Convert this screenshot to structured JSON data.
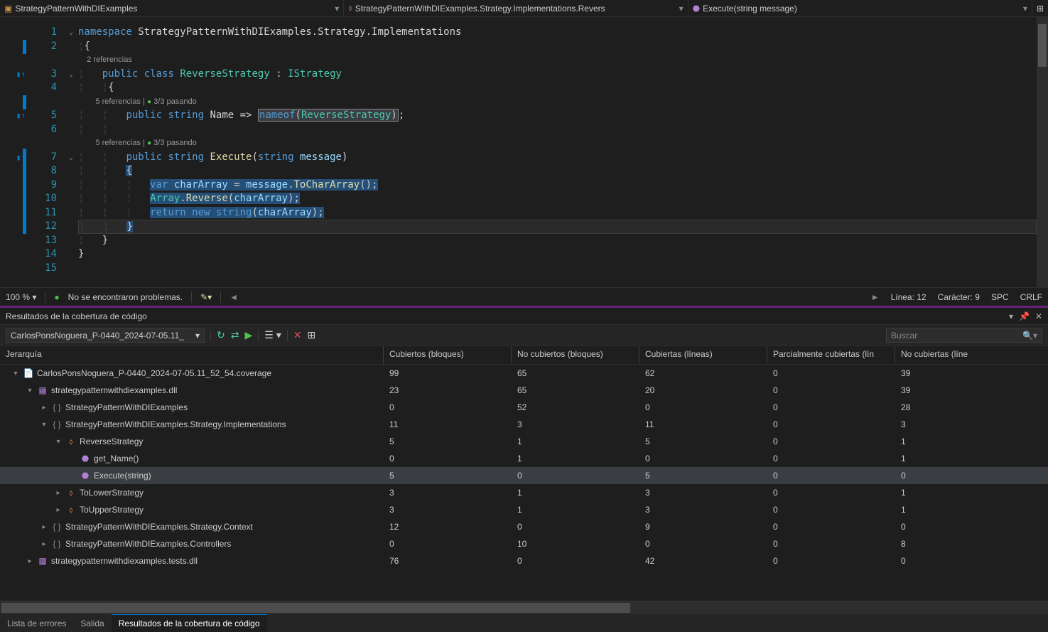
{
  "topbar": {
    "project": "StrategyPatternWithDIExamples",
    "class": "StrategyPatternWithDIExamples.Strategy.Implementations.Revers",
    "method": "Execute(string message)"
  },
  "code": {
    "codelens1": "2 referencias",
    "codelens2": "5 referencias |",
    "codelens2b": "3/3 pasando",
    "codelens3": "5 referencias |",
    "codelens3b": "3/3 pasando"
  },
  "status": {
    "zoom": "100 %",
    "problems": "No se encontraron problemas.",
    "line": "Línea: 12",
    "char": "Carácter: 9",
    "enc": "SPC",
    "eol": "CRLF"
  },
  "panel": {
    "title": "Resultados de la cobertura de código"
  },
  "toolbar": {
    "dropdown": "CarlosPonsNoguera_P-0440_2024-07-05.11_",
    "search_placeholder": "Buscar"
  },
  "columns": {
    "c0": "Jerarquía",
    "c1": "Cubiertos (bloques)",
    "c2": "No cubiertos (bloques)",
    "c3": "Cubiertas (líneas)",
    "c4": "Parcialmente cubiertas (lín",
    "c5": "No cubiertas (líne"
  },
  "rows": [
    {
      "indent": 0,
      "expand": "▾",
      "icon": "file",
      "label": "CarlosPonsNoguera_P-0440_2024-07-05.11_52_54.coverage",
      "v": [
        "99",
        "65",
        "62",
        "0",
        "39"
      ]
    },
    {
      "indent": 1,
      "expand": "▾",
      "icon": "dll",
      "label": "strategypatternwithdiexamples.dll",
      "v": [
        "23",
        "65",
        "20",
        "0",
        "39"
      ]
    },
    {
      "indent": 2,
      "expand": "▸",
      "icon": "ns",
      "label": "StrategyPatternWithDIExamples",
      "v": [
        "0",
        "52",
        "0",
        "0",
        "28"
      ]
    },
    {
      "indent": 2,
      "expand": "▾",
      "icon": "ns",
      "label": "StrategyPatternWithDIExamples.Strategy.Implementations",
      "v": [
        "11",
        "3",
        "11",
        "0",
        "3"
      ]
    },
    {
      "indent": 3,
      "expand": "▾",
      "icon": "class",
      "label": "ReverseStrategy",
      "v": [
        "5",
        "1",
        "5",
        "0",
        "1"
      ]
    },
    {
      "indent": 4,
      "expand": "",
      "icon": "method",
      "label": "get_Name()",
      "v": [
        "0",
        "1",
        "0",
        "0",
        "1"
      ]
    },
    {
      "indent": 4,
      "expand": "",
      "icon": "method",
      "label": "Execute(string)",
      "selected": true,
      "v": [
        "5",
        "0",
        "5",
        "0",
        "0"
      ]
    },
    {
      "indent": 3,
      "expand": "▸",
      "icon": "class",
      "label": "ToLowerStrategy",
      "v": [
        "3",
        "1",
        "3",
        "0",
        "1"
      ]
    },
    {
      "indent": 3,
      "expand": "▸",
      "icon": "class",
      "label": "ToUpperStrategy",
      "v": [
        "3",
        "1",
        "3",
        "0",
        "1"
      ]
    },
    {
      "indent": 2,
      "expand": "▸",
      "icon": "ns",
      "label": "StrategyPatternWithDIExamples.Strategy.Context",
      "v": [
        "12",
        "0",
        "9",
        "0",
        "0"
      ]
    },
    {
      "indent": 2,
      "expand": "▸",
      "icon": "ns",
      "label": "StrategyPatternWithDIExamples.Controllers",
      "v": [
        "0",
        "10",
        "0",
        "0",
        "8"
      ]
    },
    {
      "indent": 1,
      "expand": "▸",
      "icon": "dll",
      "label": "strategypatternwithdiexamples.tests.dll",
      "v": [
        "76",
        "0",
        "42",
        "0",
        "0"
      ]
    }
  ],
  "tabs": {
    "t0": "Lista de errores",
    "t1": "Salida",
    "t2": "Resultados de la cobertura de código"
  }
}
